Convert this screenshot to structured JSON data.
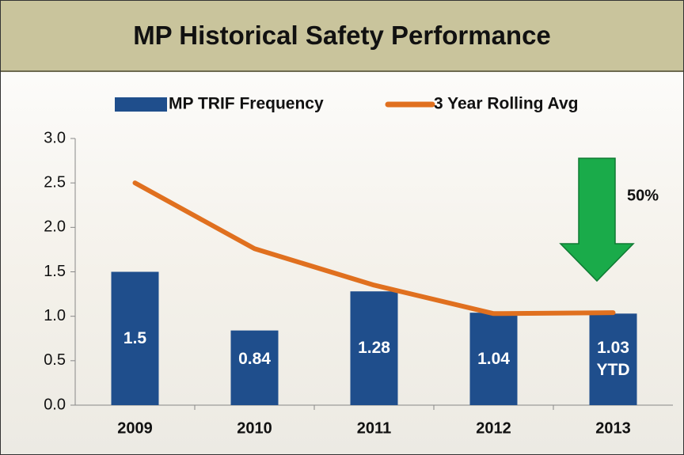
{
  "chart_data": {
    "type": "bar",
    "title": "MP Historical Safety Performance",
    "categories": [
      "2009",
      "2010",
      "2011",
      "2012",
      "2013"
    ],
    "series": [
      {
        "name": "MP TRIF Frequency",
        "type": "bar",
        "color": "#1f4e8c",
        "values": [
          1.5,
          0.84,
          1.28,
          1.04,
          1.03
        ],
        "value_labels": [
          "1.5",
          "0.84",
          "1.28",
          "1.04",
          "1.03 YTD"
        ]
      },
      {
        "name": "3 Year Rolling Avg",
        "type": "line",
        "color": "#e0701f",
        "values": [
          2.5,
          1.76,
          1.35,
          1.03,
          1.04
        ]
      }
    ],
    "ylim": [
      0,
      3
    ],
    "yticks": [
      {
        "value": 0,
        "label": "0.0"
      },
      0.5,
      {
        "value": 1,
        "label": "1.0"
      },
      1.5,
      {
        "value": 2,
        "label": "2.0"
      },
      2.5,
      {
        "value": 3,
        "label": "3.0"
      }
    ],
    "annotation": "50%",
    "legend": "top"
  }
}
